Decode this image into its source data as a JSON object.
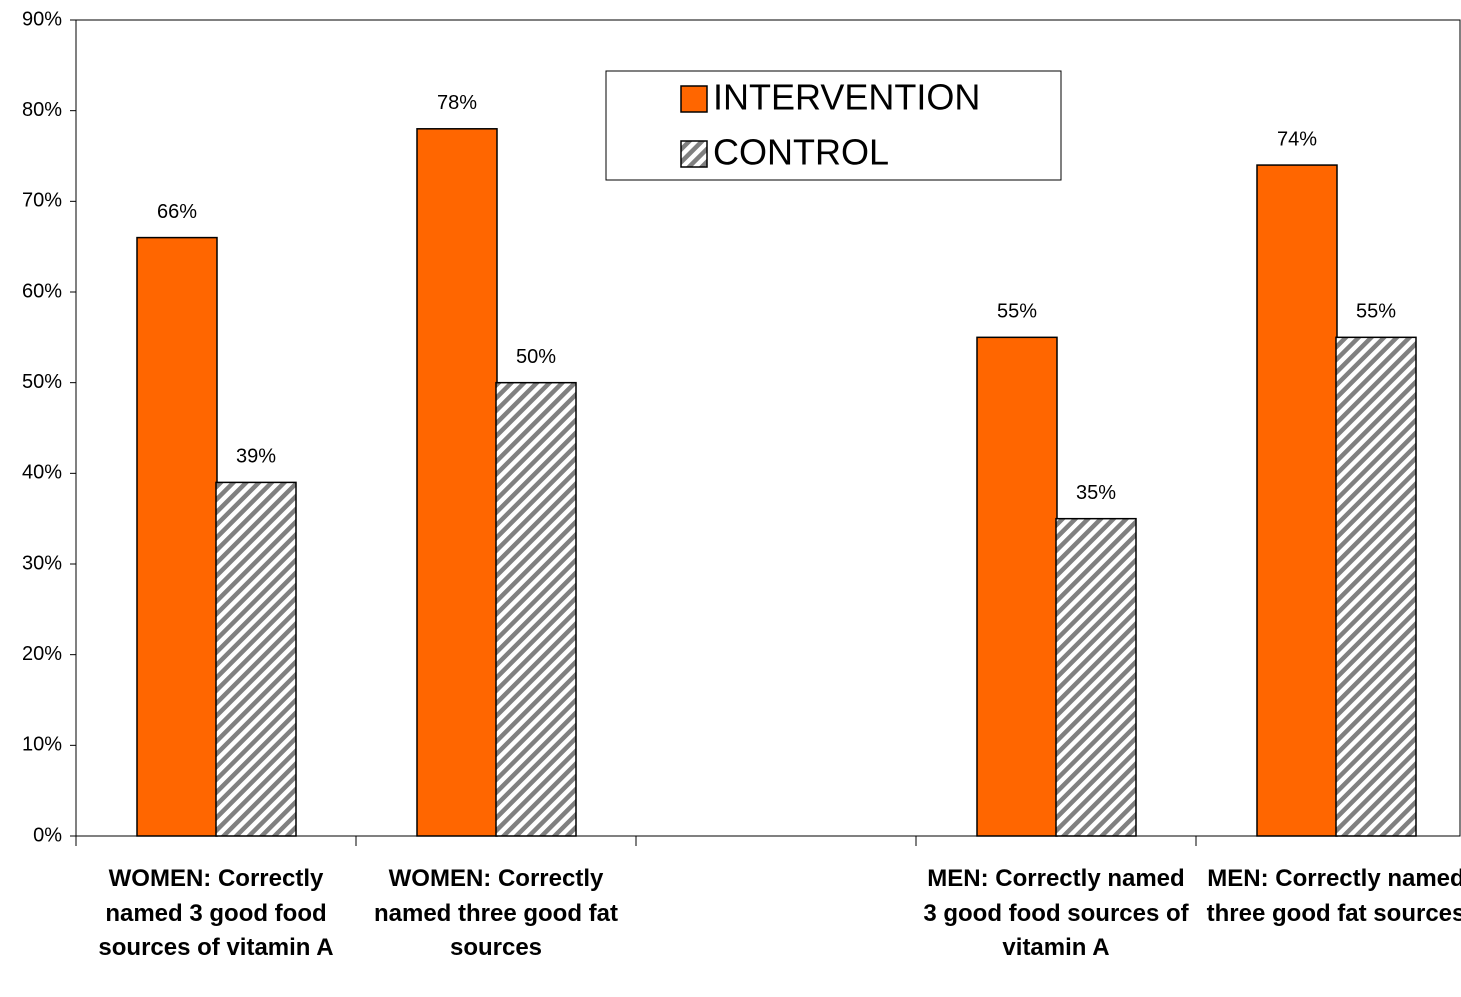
{
  "chart_data": {
    "type": "bar",
    "categories": [
      "WOMEN:  Correctly named 3 good food sources of vitamin A",
      "WOMEN:  Correctly named three good fat sources",
      null,
      "MEN:  Correctly named 3 good food sources of vitamin A",
      "MEN:  Correctly named three good fat sources"
    ],
    "series": [
      {
        "name": "INTERVENTION",
        "color": "#ff6600",
        "values": [
          66,
          78,
          null,
          55,
          74
        ],
        "value_labels": [
          "66%",
          "78%",
          null,
          "55%",
          "74%"
        ]
      },
      {
        "name": "CONTROL",
        "color": "#808080",
        "pattern": "diagonal-hatch",
        "values": [
          39,
          50,
          null,
          35,
          55
        ],
        "value_labels": [
          "39%",
          "50%",
          null,
          "35%",
          "55%"
        ]
      }
    ],
    "ylim": [
      0,
      90
    ],
    "yticks": [
      {
        "value": 0,
        "label": "0%"
      },
      {
        "value": 10,
        "label": "10%"
      },
      {
        "value": 20,
        "label": "20%"
      },
      {
        "value": 30,
        "label": "30%"
      },
      {
        "value": 40,
        "label": "40%"
      },
      {
        "value": 50,
        "label": "50%"
      },
      {
        "value": 60,
        "label": "60%"
      },
      {
        "value": 70,
        "label": "70%"
      },
      {
        "value": 80,
        "label": "80%"
      },
      {
        "value": 90,
        "label": "90%"
      }
    ],
    "grid": false,
    "legend": "top"
  }
}
